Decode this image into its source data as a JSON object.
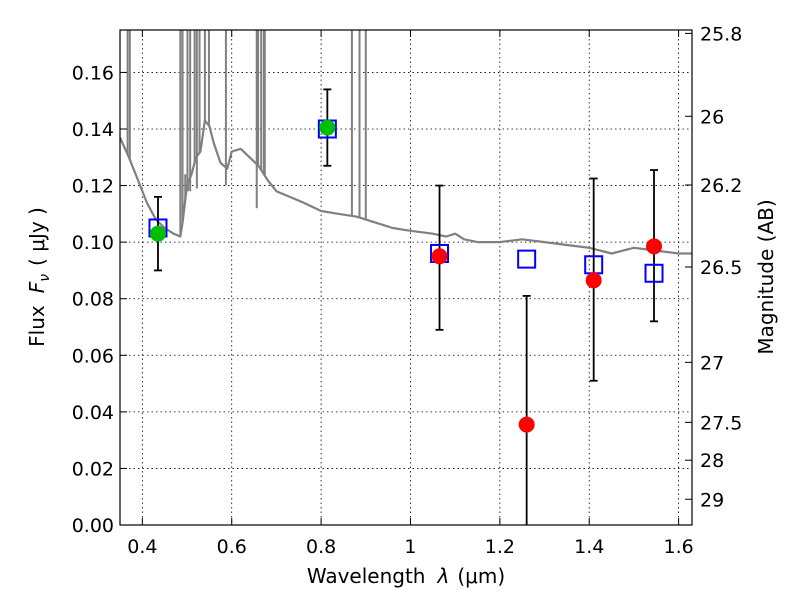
{
  "chart_data": {
    "type": "scatter",
    "xlabel": {
      "prefix": "Wavelength",
      "symbol": "λ",
      "unit": "(μm)"
    },
    "ylabel": {
      "prefix": "Flux",
      "symbol": "F",
      "subscript": "ν",
      "unit": "( μJy )"
    },
    "y2label": "Magnitude (AB)",
    "xlim": [
      0.35,
      1.63
    ],
    "ylim": [
      0.0,
      0.175
    ],
    "grid": true,
    "x_ticks": [
      0.4,
      0.6,
      0.8,
      1.0,
      1.2,
      1.4,
      1.6
    ],
    "x_tick_labels": [
      "0.4",
      "0.6",
      "0.8",
      "1",
      "1.2",
      "1.4",
      "1.6"
    ],
    "y_ticks": [
      0.0,
      0.02,
      0.04,
      0.06,
      0.08,
      0.1,
      0.12,
      0.14,
      0.16
    ],
    "y_tick_labels": [
      "0.00",
      "0.02",
      "0.04",
      "0.06",
      "0.08",
      "0.10",
      "0.12",
      "0.14",
      "0.16"
    ],
    "y2_ticks": [
      {
        "label": "25.8",
        "flux": 0.1738
      },
      {
        "label": "26",
        "flux": 0.1445
      },
      {
        "label": "26.2",
        "flux": 0.1202
      },
      {
        "label": "26.5",
        "flux": 0.0912
      },
      {
        "label": "27",
        "flux": 0.0575
      },
      {
        "label": "27.5",
        "flux": 0.0363
      },
      {
        "label": "28",
        "flux": 0.0229
      },
      {
        "label": "29",
        "flux": 0.0091
      }
    ],
    "series": [
      {
        "marker": "square-open",
        "color": "#0000ff",
        "points": [
          {
            "x": 0.435,
            "y": 0.105
          },
          {
            "x": 0.814,
            "y": 0.14
          },
          {
            "x": 1.065,
            "y": 0.096
          },
          {
            "x": 1.26,
            "y": 0.094
          },
          {
            "x": 1.41,
            "y": 0.092
          },
          {
            "x": 1.545,
            "y": 0.089
          }
        ]
      },
      {
        "marker": "circle",
        "color": "#00bf00",
        "points": [
          {
            "x": 0.435,
            "y": 0.103,
            "yerr_low": 0.09,
            "yerr_high": 0.116
          },
          {
            "x": 0.814,
            "y": 0.1405,
            "yerr_low": 0.127,
            "yerr_high": 0.154
          }
        ]
      },
      {
        "marker": "circle",
        "color": "#ff0000",
        "points": [
          {
            "x": 1.065,
            "y": 0.095,
            "yerr_low": 0.069,
            "yerr_high": 0.12
          },
          {
            "x": 1.26,
            "y": 0.0355,
            "yerr_low": 0.0,
            "yerr_high": 0.081
          },
          {
            "x": 1.41,
            "y": 0.0865,
            "yerr_low": 0.051,
            "yerr_high": 0.1225
          },
          {
            "x": 1.545,
            "y": 0.0985,
            "yerr_low": 0.072,
            "yerr_high": 0.1255
          }
        ]
      },
      {
        "marker": "line",
        "color": "#808080",
        "points": [
          {
            "x": 0.35,
            "y": 0.137
          },
          {
            "x": 0.37,
            "y": 0.13
          },
          {
            "x": 0.39,
            "y": 0.122
          },
          {
            "x": 0.41,
            "y": 0.114
          },
          {
            "x": 0.43,
            "y": 0.108
          },
          {
            "x": 0.45,
            "y": 0.105
          },
          {
            "x": 0.47,
            "y": 0.103
          },
          {
            "x": 0.485,
            "y": 0.102
          },
          {
            "x": 0.49,
            "y": 0.107
          },
          {
            "x": 0.5,
            "y": 0.12
          },
          {
            "x": 0.51,
            "y": 0.124
          },
          {
            "x": 0.52,
            "y": 0.13
          },
          {
            "x": 0.53,
            "y": 0.132
          },
          {
            "x": 0.54,
            "y": 0.143
          },
          {
            "x": 0.55,
            "y": 0.141
          },
          {
            "x": 0.56,
            "y": 0.135
          },
          {
            "x": 0.575,
            "y": 0.128
          },
          {
            "x": 0.59,
            "y": 0.126
          },
          {
            "x": 0.6,
            "y": 0.132
          },
          {
            "x": 0.62,
            "y": 0.133
          },
          {
            "x": 0.64,
            "y": 0.13
          },
          {
            "x": 0.66,
            "y": 0.127
          },
          {
            "x": 0.68,
            "y": 0.122
          },
          {
            "x": 0.7,
            "y": 0.118
          },
          {
            "x": 0.73,
            "y": 0.116
          },
          {
            "x": 0.76,
            "y": 0.114
          },
          {
            "x": 0.8,
            "y": 0.111
          },
          {
            "x": 0.84,
            "y": 0.11
          },
          {
            "x": 0.88,
            "y": 0.109
          },
          {
            "x": 0.92,
            "y": 0.107
          },
          {
            "x": 0.96,
            "y": 0.105
          },
          {
            "x": 1.0,
            "y": 0.104
          },
          {
            "x": 1.05,
            "y": 0.103
          },
          {
            "x": 1.08,
            "y": 0.102
          },
          {
            "x": 1.1,
            "y": 0.103
          },
          {
            "x": 1.12,
            "y": 0.101
          },
          {
            "x": 1.15,
            "y": 0.1
          },
          {
            "x": 1.2,
            "y": 0.1
          },
          {
            "x": 1.25,
            "y": 0.101
          },
          {
            "x": 1.3,
            "y": 0.1
          },
          {
            "x": 1.35,
            "y": 0.099
          },
          {
            "x": 1.4,
            "y": 0.098
          },
          {
            "x": 1.45,
            "y": 0.096
          },
          {
            "x": 1.5,
            "y": 0.098
          },
          {
            "x": 1.55,
            "y": 0.097
          },
          {
            "x": 1.6,
            "y": 0.096
          },
          {
            "x": 1.63,
            "y": 0.096
          }
        ],
        "spikes": [
          {
            "x": 0.367,
            "y": 0.175
          },
          {
            "x": 0.372,
            "y": 0.175
          },
          {
            "x": 0.485,
            "y": 0.175
          },
          {
            "x": 0.49,
            "y": 0.175
          },
          {
            "x": 0.496,
            "y": 0.124
          },
          {
            "x": 0.501,
            "y": 0.175
          },
          {
            "x": 0.507,
            "y": 0.175
          },
          {
            "x": 0.517,
            "y": 0.175
          },
          {
            "x": 0.522,
            "y": 0.175
          },
          {
            "x": 0.528,
            "y": 0.175
          },
          {
            "x": 0.54,
            "y": 0.175
          },
          {
            "x": 0.549,
            "y": 0.175
          },
          {
            "x": 0.587,
            "y": 0.175
          },
          {
            "x": 0.656,
            "y": 0.175
          },
          {
            "x": 0.659,
            "y": 0.175
          },
          {
            "x": 0.666,
            "y": 0.175
          },
          {
            "x": 0.672,
            "y": 0.175
          },
          {
            "x": 0.674,
            "y": 0.175
          },
          {
            "x": 0.869,
            "y": 0.175
          },
          {
            "x": 0.886,
            "y": 0.175
          },
          {
            "x": 0.9,
            "y": 0.175
          }
        ],
        "dips": [
          {
            "x": 0.498,
            "y": 0.117
          },
          {
            "x": 0.502,
            "y": 0.118
          },
          {
            "x": 0.507,
            "y": 0.118
          },
          {
            "x": 0.522,
            "y": 0.119
          },
          {
            "x": 0.587,
            "y": 0.12
          },
          {
            "x": 0.656,
            "y": 0.112
          },
          {
            "x": 0.869,
            "y": 0.109
          }
        ]
      }
    ]
  }
}
